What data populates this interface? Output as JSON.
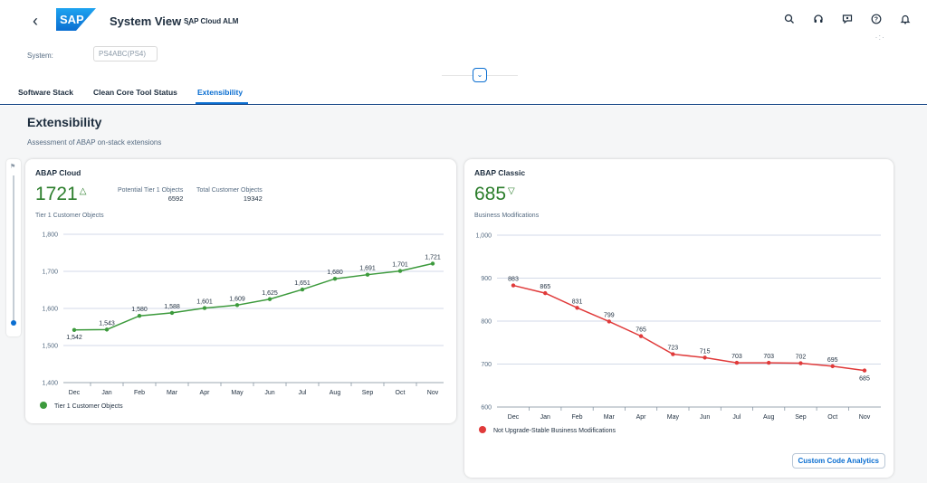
{
  "shell": {
    "back_icon": "chevron-left-icon",
    "app_title": "System View",
    "app_subtitle": "SAP Cloud ALM",
    "logo_text": "SAP",
    "icons": [
      "search-icon",
      "headset-icon",
      "chat-icon",
      "help-icon",
      "bell-icon"
    ]
  },
  "system": {
    "label": "System:",
    "value": "PS4ABC(PS4)"
  },
  "tabs": [
    {
      "label": "Software Stack"
    },
    {
      "label": "Clean Core Tool Status"
    },
    {
      "label": "Extensibility",
      "active": true
    }
  ],
  "page": {
    "title": "Extensibility",
    "subtitle": "Assessment of ABAP on-stack extensions"
  },
  "cards": [
    {
      "title": "ABAP Cloud",
      "kpi_value": "1721",
      "kpi_trend": "△",
      "kpi_label": "Tier 1 Customer Objects",
      "sub_kpis": [
        {
          "label": "Potential Tier 1 Objects",
          "value": "6592"
        },
        {
          "label": "Total Customer Objects",
          "value": "19342"
        }
      ],
      "legend": "Tier 1 Customer Objects"
    },
    {
      "title": "ABAP Classic",
      "kpi_value": "685",
      "kpi_trend": "▽",
      "kpi_label": "Business Modifications",
      "legend": "Not Upgrade-Stable Business Modifications",
      "button_label": "Custom Code Analytics"
    }
  ],
  "chart_data": [
    {
      "type": "line",
      "categories": [
        "Dec",
        "Jan",
        "Feb",
        "Mar",
        "Apr",
        "May",
        "Jun",
        "Jul",
        "Aug",
        "Sep",
        "Oct",
        "Nov"
      ],
      "series": [
        {
          "name": "Tier 1 Customer Objects",
          "values": [
            1542,
            1543,
            1580,
            1588,
            1601,
            1609,
            1625,
            1651,
            1680,
            1691,
            1701,
            1721
          ]
        }
      ],
      "ylim": [
        1400,
        1800
      ],
      "yticks": [
        1400,
        1500,
        1600,
        1700,
        1800
      ],
      "ytick_labels": [
        "1,400",
        "1,500",
        "1,600",
        "1,700",
        "1,800"
      ],
      "data_labels": [
        "1,542",
        "1,543",
        "1,580",
        "1,588",
        "1,601",
        "1,609",
        "1,625",
        "1,651",
        "1,680",
        "1,691",
        "1,701",
        "1,721"
      ],
      "color": "#3c9a3c",
      "grid": true
    },
    {
      "type": "line",
      "categories": [
        "Dec",
        "Jan",
        "Feb",
        "Mar",
        "Apr",
        "May",
        "Jun",
        "Jul",
        "Aug",
        "Sep",
        "Oct",
        "Nov"
      ],
      "series": [
        {
          "name": "Not Upgrade-Stable Business Modifications",
          "values": [
            883,
            865,
            831,
            799,
            765,
            723,
            715,
            703,
            703,
            702,
            695,
            685
          ]
        }
      ],
      "ylim": [
        600,
        1000
      ],
      "yticks": [
        600,
        700,
        800,
        900,
        1000
      ],
      "ytick_labels": [
        "600",
        "700",
        "800",
        "900",
        "1,000"
      ],
      "data_labels": [
        "883",
        "865",
        "831",
        "799",
        "765",
        "723",
        "715",
        "703",
        "703",
        "702",
        "695",
        "685"
      ],
      "color": "#e03a3a",
      "grid": true
    }
  ]
}
